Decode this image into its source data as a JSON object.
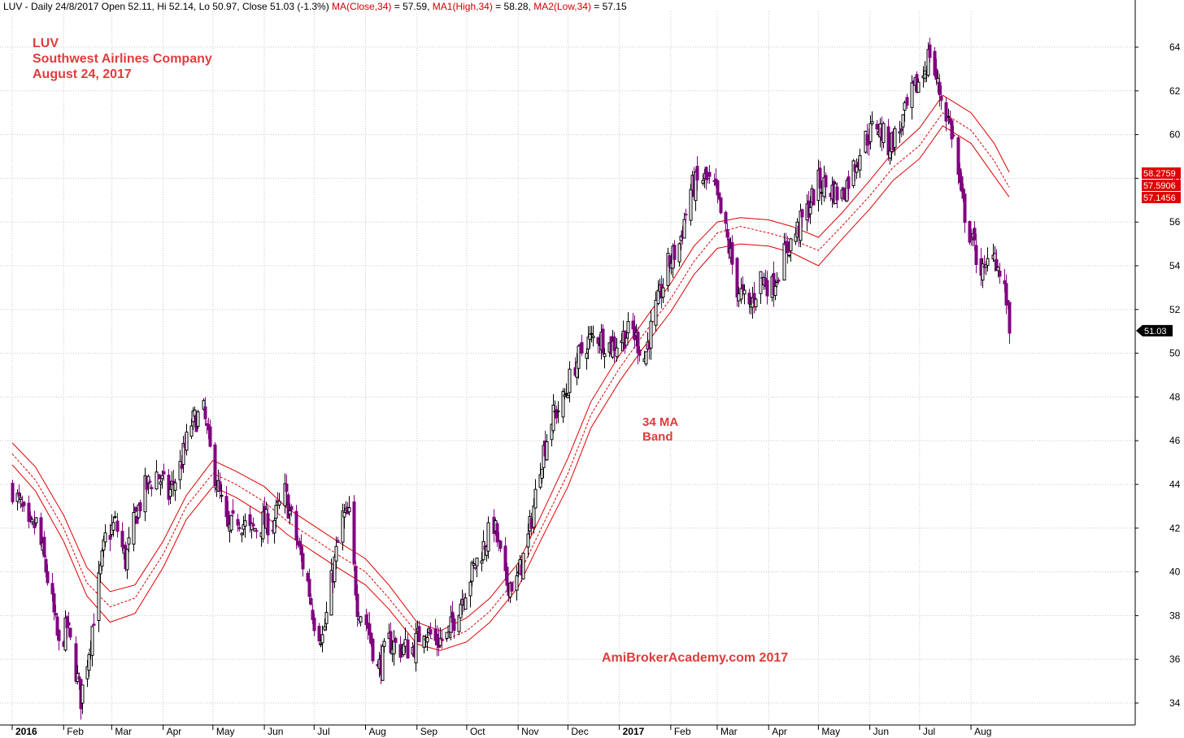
{
  "header": {
    "symbol_line": "LUV - Daily 24/8/2017 Open 52.11, Hi 52.14, Lo 50.97, Close 51.03 (-1.3%)",
    "ma_label": "MA(Close,34)",
    "ma_value": "= 57.59,",
    "ma1_label": "MA1(High,34)",
    "ma1_value": "= 58.28,",
    "ma2_label": "MA2(Low,34)",
    "ma2_value": "= 57.15"
  },
  "annotations": {
    "ticker": "LUV",
    "company": "Southwest Airlines Company",
    "date": "August 24, 2017",
    "band_line1": "34 MA",
    "band_line2": "Band",
    "watermark": "AmiBrokerAcademy.com  2017"
  },
  "colors": {
    "up_candle": "#000000",
    "down_candle": "#800080",
    "ma_band": "#e00000",
    "annotation": "#e03c3c",
    "grid": "#c8c8c8"
  },
  "chart_data": {
    "type": "candlestick",
    "title": "LUV - Daily 24/8/2017",
    "ylim": [
      33,
      65
    ],
    "y_ticks": [
      34,
      36,
      38,
      40,
      42,
      44,
      46,
      48,
      50,
      52,
      54,
      56,
      58,
      60,
      62,
      64
    ],
    "x_ticks": [
      "2016",
      "Feb",
      "Mar",
      "Apr",
      "May",
      "Jun",
      "Jul",
      "Aug",
      "Sep",
      "Oct",
      "Nov",
      "Dec",
      "2017",
      "Feb",
      "Mar",
      "Apr",
      "May",
      "Jun",
      "Jul",
      "Aug"
    ],
    "x_tick_bold": [
      "2016",
      "2017"
    ],
    "grid": true,
    "price_close_path": [
      [
        "2016-01-01",
        43.8
      ],
      [
        "2016-01-06",
        43.0
      ],
      [
        "2016-01-11",
        41.8
      ],
      [
        "2016-01-15",
        42.2
      ],
      [
        "2016-01-20",
        40.5
      ],
      [
        "2016-01-25",
        38.5
      ],
      [
        "2016-01-29",
        36.5
      ],
      [
        "2016-02-03",
        37.5
      ],
      [
        "2016-02-08",
        35.5
      ],
      [
        "2016-02-11",
        34.2
      ],
      [
        "2016-02-16",
        36.5
      ],
      [
        "2016-02-22",
        39.5
      ],
      [
        "2016-02-26",
        41.5
      ],
      [
        "2016-03-03",
        42.2
      ],
      [
        "2016-03-09",
        40.5
      ],
      [
        "2016-03-15",
        42.5
      ],
      [
        "2016-03-21",
        43.8
      ],
      [
        "2016-03-28",
        44.5
      ],
      [
        "2016-04-04",
        43.5
      ],
      [
        "2016-04-11",
        44.8
      ],
      [
        "2016-04-18",
        46.8
      ],
      [
        "2016-04-25",
        47.3
      ],
      [
        "2016-04-29",
        45.5
      ],
      [
        "2016-05-04",
        43.8
      ],
      [
        "2016-05-10",
        41.8
      ],
      [
        "2016-05-16",
        42.5
      ],
      [
        "2016-05-23",
        41.8
      ],
      [
        "2016-05-31",
        42.3
      ],
      [
        "2016-06-06",
        42.2
      ],
      [
        "2016-06-13",
        43.6
      ],
      [
        "2016-06-20",
        41.5
      ],
      [
        "2016-06-27",
        39.5
      ],
      [
        "2016-07-01",
        37.8
      ],
      [
        "2016-07-06",
        37.0
      ],
      [
        "2016-07-12",
        40.0
      ],
      [
        "2016-07-18",
        42.5
      ],
      [
        "2016-07-22",
        42.5
      ],
      [
        "2016-07-27",
        38.5
      ],
      [
        "2016-08-02",
        37.5
      ],
      [
        "2016-08-08",
        35.5
      ],
      [
        "2016-08-15",
        36.8
      ],
      [
        "2016-08-22",
        36.5
      ],
      [
        "2016-08-29",
        36.5
      ],
      [
        "2016-09-05",
        37.5
      ],
      [
        "2016-09-12",
        36.8
      ],
      [
        "2016-09-19",
        37.0
      ],
      [
        "2016-09-26",
        38.5
      ],
      [
        "2016-10-03",
        39.8
      ],
      [
        "2016-10-10",
        41.0
      ],
      [
        "2016-10-17",
        42.2
      ],
      [
        "2016-10-24",
        39.5
      ],
      [
        "2016-10-31",
        39.5
      ],
      [
        "2016-11-07",
        41.5
      ],
      [
        "2016-11-14",
        45.0
      ],
      [
        "2016-11-21",
        47.0
      ],
      [
        "2016-11-28",
        47.8
      ],
      [
        "2016-12-05",
        49.5
      ],
      [
        "2016-12-12",
        50.5
      ],
      [
        "2016-12-19",
        50.8
      ],
      [
        "2016-12-27",
        50.3
      ],
      [
        "2017-01-03",
        50.8
      ],
      [
        "2017-01-09",
        51.0
      ],
      [
        "2017-01-16",
        49.8
      ],
      [
        "2017-01-23",
        52.0
      ],
      [
        "2017-01-30",
        54.0
      ],
      [
        "2017-02-06",
        55.0
      ],
      [
        "2017-02-13",
        57.5
      ],
      [
        "2017-02-20",
        58.0
      ],
      [
        "2017-02-27",
        57.5
      ],
      [
        "2017-03-06",
        55.5
      ],
      [
        "2017-03-13",
        53.0
      ],
      [
        "2017-03-20",
        52.0
      ],
      [
        "2017-03-27",
        53.5
      ],
      [
        "2017-04-03",
        53.0
      ],
      [
        "2017-04-10",
        54.5
      ],
      [
        "2017-04-17",
        55.5
      ],
      [
        "2017-04-24",
        56.5
      ],
      [
        "2017-05-01",
        57.8
      ],
      [
        "2017-05-08",
        57.5
      ],
      [
        "2017-05-15",
        57.2
      ],
      [
        "2017-05-22",
        58.5
      ],
      [
        "2017-05-29",
        59.8
      ],
      [
        "2017-06-05",
        60.5
      ],
      [
        "2017-06-12",
        59.5
      ],
      [
        "2017-06-19",
        60.2
      ],
      [
        "2017-06-26",
        61.8
      ],
      [
        "2017-07-03",
        62.8
      ],
      [
        "2017-07-07",
        63.8
      ],
      [
        "2017-07-12",
        62.2
      ],
      [
        "2017-07-17",
        61.0
      ],
      [
        "2017-07-21",
        59.8
      ],
      [
        "2017-07-26",
        57.0
      ],
      [
        "2017-07-31",
        55.5
      ],
      [
        "2017-08-04",
        54.5
      ],
      [
        "2017-08-09",
        53.5
      ],
      [
        "2017-08-14",
        55.0
      ],
      [
        "2017-08-18",
        53.5
      ],
      [
        "2017-08-22",
        52.5
      ],
      [
        "2017-08-24",
        51.03
      ]
    ],
    "ma_close_34": [
      [
        "2016-01-01",
        45.4
      ],
      [
        "2016-01-15",
        44.2
      ],
      [
        "2016-02-01",
        42.0
      ],
      [
        "2016-02-15",
        39.5
      ],
      [
        "2016-02-29",
        38.4
      ],
      [
        "2016-03-15",
        38.8
      ],
      [
        "2016-04-01",
        40.8
      ],
      [
        "2016-04-15",
        43.0
      ],
      [
        "2016-05-01",
        44.5
      ],
      [
        "2016-05-15",
        44.0
      ],
      [
        "2016-06-01",
        43.2
      ],
      [
        "2016-06-15",
        42.3
      ],
      [
        "2016-07-01",
        41.5
      ],
      [
        "2016-07-15",
        40.8
      ],
      [
        "2016-08-01",
        40.0
      ],
      [
        "2016-08-15",
        38.8
      ],
      [
        "2016-09-01",
        37.2
      ],
      [
        "2016-09-15",
        36.8
      ],
      [
        "2016-10-01",
        37.3
      ],
      [
        "2016-10-15",
        38.2
      ],
      [
        "2016-11-01",
        39.8
      ],
      [
        "2016-11-15",
        42.0
      ],
      [
        "2016-12-01",
        44.5
      ],
      [
        "2016-12-15",
        47.2
      ],
      [
        "2017-01-01",
        49.3
      ],
      [
        "2017-01-15",
        50.8
      ],
      [
        "2017-02-01",
        52.5
      ],
      [
        "2017-02-15",
        54.2
      ],
      [
        "2017-03-01",
        55.5
      ],
      [
        "2017-03-15",
        55.8
      ],
      [
        "2017-04-01",
        55.5
      ],
      [
        "2017-04-15",
        55.2
      ],
      [
        "2017-05-01",
        54.7
      ],
      [
        "2017-05-15",
        55.8
      ],
      [
        "2017-06-01",
        57.2
      ],
      [
        "2017-06-15",
        58.5
      ],
      [
        "2017-07-01",
        59.5
      ],
      [
        "2017-07-15",
        61.0
      ],
      [
        "2017-08-01",
        60.2
      ],
      [
        "2017-08-15",
        58.8
      ],
      [
        "2017-08-24",
        57.59
      ]
    ],
    "ma_high_34": [
      [
        "2016-01-01",
        45.9
      ],
      [
        "2016-01-15",
        44.8
      ],
      [
        "2016-02-01",
        42.6
      ],
      [
        "2016-02-15",
        40.2
      ],
      [
        "2016-02-29",
        39.1
      ],
      [
        "2016-03-15",
        39.4
      ],
      [
        "2016-04-01",
        41.4
      ],
      [
        "2016-04-15",
        43.5
      ],
      [
        "2016-05-01",
        45.1
      ],
      [
        "2016-05-15",
        44.6
      ],
      [
        "2016-06-01",
        43.9
      ],
      [
        "2016-06-15",
        42.9
      ],
      [
        "2016-07-01",
        42.1
      ],
      [
        "2016-07-15",
        41.4
      ],
      [
        "2016-08-01",
        40.6
      ],
      [
        "2016-08-15",
        39.4
      ],
      [
        "2016-09-01",
        37.7
      ],
      [
        "2016-09-15",
        37.3
      ],
      [
        "2016-10-01",
        37.9
      ],
      [
        "2016-10-15",
        38.8
      ],
      [
        "2016-11-01",
        40.4
      ],
      [
        "2016-11-15",
        42.6
      ],
      [
        "2016-12-01",
        45.2
      ],
      [
        "2016-12-15",
        47.8
      ],
      [
        "2017-01-01",
        49.9
      ],
      [
        "2017-01-15",
        51.4
      ],
      [
        "2017-02-01",
        53.2
      ],
      [
        "2017-02-15",
        54.9
      ],
      [
        "2017-03-01",
        56.0
      ],
      [
        "2017-03-15",
        56.2
      ],
      [
        "2017-04-01",
        56.1
      ],
      [
        "2017-04-15",
        55.8
      ],
      [
        "2017-05-01",
        55.3
      ],
      [
        "2017-05-15",
        56.4
      ],
      [
        "2017-06-01",
        57.9
      ],
      [
        "2017-06-15",
        59.2
      ],
      [
        "2017-07-01",
        60.3
      ],
      [
        "2017-07-15",
        61.8
      ],
      [
        "2017-08-01",
        61.0
      ],
      [
        "2017-08-15",
        59.6
      ],
      [
        "2017-08-24",
        58.28
      ]
    ],
    "ma_low_34": [
      [
        "2016-01-01",
        44.9
      ],
      [
        "2016-01-15",
        43.7
      ],
      [
        "2016-02-01",
        41.4
      ],
      [
        "2016-02-15",
        38.9
      ],
      [
        "2016-02-29",
        37.7
      ],
      [
        "2016-03-15",
        38.1
      ],
      [
        "2016-04-01",
        40.2
      ],
      [
        "2016-04-15",
        42.4
      ],
      [
        "2016-05-01",
        43.9
      ],
      [
        "2016-05-15",
        43.4
      ],
      [
        "2016-06-01",
        42.6
      ],
      [
        "2016-06-15",
        41.7
      ],
      [
        "2016-07-01",
        40.9
      ],
      [
        "2016-07-15",
        40.2
      ],
      [
        "2016-08-01",
        39.4
      ],
      [
        "2016-08-15",
        38.3
      ],
      [
        "2016-09-01",
        36.7
      ],
      [
        "2016-09-15",
        36.4
      ],
      [
        "2016-10-01",
        36.8
      ],
      [
        "2016-10-15",
        37.7
      ],
      [
        "2016-11-01",
        39.3
      ],
      [
        "2016-11-15",
        41.5
      ],
      [
        "2016-12-01",
        43.9
      ],
      [
        "2016-12-15",
        46.6
      ],
      [
        "2017-01-01",
        48.7
      ],
      [
        "2017-01-15",
        50.2
      ],
      [
        "2017-02-01",
        51.9
      ],
      [
        "2017-02-15",
        53.6
      ],
      [
        "2017-03-01",
        54.8
      ],
      [
        "2017-03-15",
        55.0
      ],
      [
        "2017-04-01",
        54.9
      ],
      [
        "2017-04-15",
        54.6
      ],
      [
        "2017-05-01",
        54.0
      ],
      [
        "2017-05-15",
        55.2
      ],
      [
        "2017-06-01",
        56.6
      ],
      [
        "2017-06-15",
        57.9
      ],
      [
        "2017-07-01",
        58.9
      ],
      [
        "2017-07-15",
        60.4
      ],
      [
        "2017-08-01",
        59.6
      ],
      [
        "2017-08-15",
        58.1
      ],
      [
        "2017-08-24",
        57.15
      ]
    ],
    "price_badges": [
      {
        "label": "58.2759",
        "value": 58.28,
        "color": "#e00000",
        "text_color": "#ffffff"
      },
      {
        "label": "57.5906",
        "value": 57.59,
        "color": "#e00000",
        "text_color": "#ffffff"
      },
      {
        "label": "57.1456",
        "value": 57.15,
        "color": "#e00000",
        "text_color": "#ffffff"
      },
      {
        "label": "51.03",
        "value": 51.03,
        "color": "#000000",
        "text_color": "#ffffff"
      }
    ]
  }
}
